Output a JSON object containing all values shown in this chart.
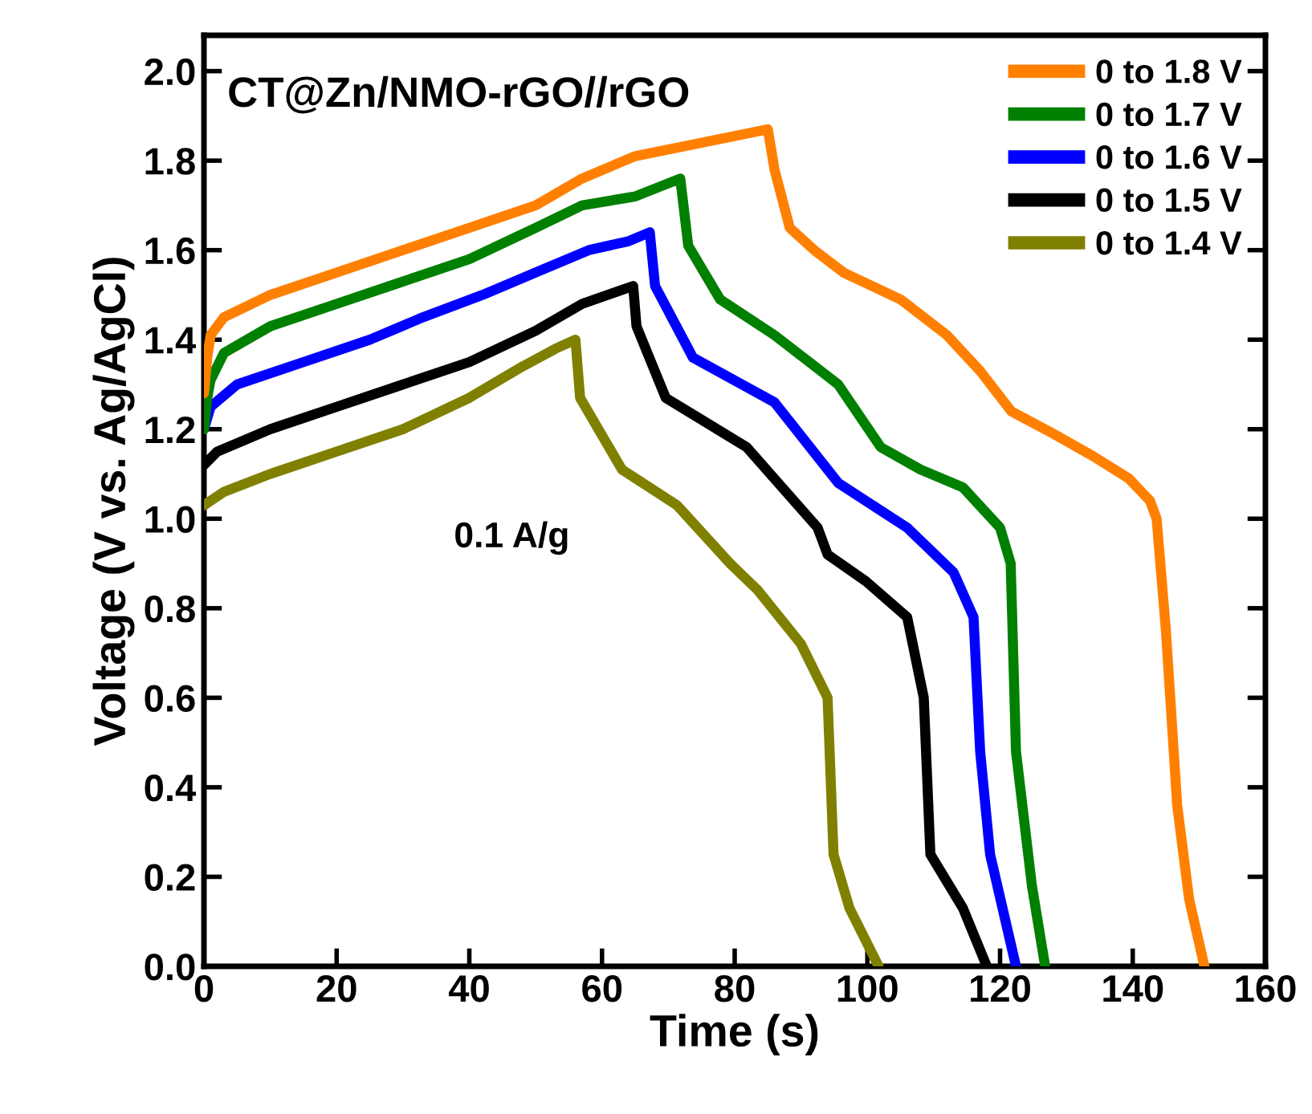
{
  "chart_data": {
    "type": "line",
    "xlabel": "Time (s)",
    "ylabel": "Voltage (V vs. Ag/AgCl)",
    "annotations": [
      "CT@Zn/NMO-rGO//rGO",
      "0.1 A/g"
    ],
    "xlim": [
      0,
      160
    ],
    "ylim": [
      0,
      2.08
    ],
    "xticks": [
      0,
      20,
      40,
      60,
      80,
      100,
      120,
      140,
      160
    ],
    "yticks": [
      {
        "value": 0,
        "label": "0.0"
      },
      0.2,
      0.4,
      0.6,
      0.8,
      {
        "value": 1,
        "label": "1.0"
      },
      1.2,
      1.4,
      1.6,
      1.8,
      {
        "value": 2,
        "label": "2.0"
      }
    ],
    "grid": false,
    "legend": "top right",
    "marker": "none",
    "line_style": "solid",
    "series": [
      {
        "name": "0 to 1.8 V",
        "color": "#ff8000",
        "x": [
          0,
          0.5,
          1,
          3,
          10,
          20,
          30,
          40,
          50,
          57,
          65,
          75,
          85,
          86,
          88.3,
          92,
          96.4,
          105,
          112,
          117,
          121.7,
          128,
          134,
          139.4,
          142.6,
          143.6,
          145,
          146.7,
          148.5,
          150.8
        ],
        "values": [
          1.28,
          1.36,
          1.41,
          1.45,
          1.5,
          1.55,
          1.6,
          1.65,
          1.7,
          1.76,
          1.81,
          1.84,
          1.87,
          1.78,
          1.65,
          1.6,
          1.55,
          1.49,
          1.41,
          1.33,
          1.24,
          1.19,
          1.14,
          1.09,
          1.04,
          1.0,
          0.75,
          0.36,
          0.15,
          0
        ]
      },
      {
        "name": "0 to 1.7 V",
        "color": "#008000",
        "x": [
          0,
          0.5,
          1,
          3,
          10,
          20,
          30,
          40,
          50,
          57,
          65,
          71.8,
          73,
          77.8,
          86,
          95.6,
          102,
          108,
          114.4,
          120,
          121.6,
          122.4,
          124.8,
          126.8
        ],
        "values": [
          1.2,
          1.27,
          1.31,
          1.37,
          1.43,
          1.48,
          1.53,
          1.58,
          1.65,
          1.7,
          1.72,
          1.76,
          1.61,
          1.49,
          1.41,
          1.3,
          1.16,
          1.11,
          1.07,
          0.98,
          0.9,
          0.48,
          0.18,
          0
        ]
      },
      {
        "name": "0 to 1.6 V",
        "color": "#0000ff",
        "x": [
          0,
          1,
          5,
          15,
          25,
          33,
          42,
          50,
          58,
          64,
          67.2,
          68,
          73.7,
          86,
          95.6,
          106,
          113,
          116,
          117,
          118.5,
          122.4
        ],
        "values": [
          1.2,
          1.25,
          1.3,
          1.35,
          1.4,
          1.45,
          1.5,
          1.55,
          1.6,
          1.62,
          1.64,
          1.52,
          1.36,
          1.26,
          1.08,
          0.98,
          0.88,
          0.78,
          0.48,
          0.25,
          0
        ]
      },
      {
        "name": "0 to 1.5 V",
        "color": "#000000",
        "x": [
          0,
          2,
          10,
          20,
          30,
          40,
          50,
          57,
          64.7,
          65.2,
          69.6,
          81.8,
          92.5,
          94,
          99.8,
          106,
          108.5,
          109.5,
          114.4,
          118
        ],
        "values": [
          1.12,
          1.15,
          1.2,
          1.25,
          1.3,
          1.35,
          1.42,
          1.48,
          1.52,
          1.43,
          1.27,
          1.16,
          0.98,
          0.92,
          0.86,
          0.78,
          0.6,
          0.25,
          0.13,
          0
        ]
      },
      {
        "name": "0 to 1.4 V",
        "color": "#808000",
        "x": [
          0,
          3,
          10,
          20,
          30,
          40,
          48,
          53,
          56,
          56.7,
          63,
          71.3,
          79.3,
          83.5,
          90,
          94,
          94.9,
          97.3,
          101.7
        ],
        "values": [
          1.03,
          1.06,
          1.1,
          1.15,
          1.2,
          1.27,
          1.34,
          1.38,
          1.4,
          1.27,
          1.11,
          1.03,
          0.9,
          0.84,
          0.72,
          0.6,
          0.25,
          0.13,
          0
        ]
      }
    ]
  }
}
